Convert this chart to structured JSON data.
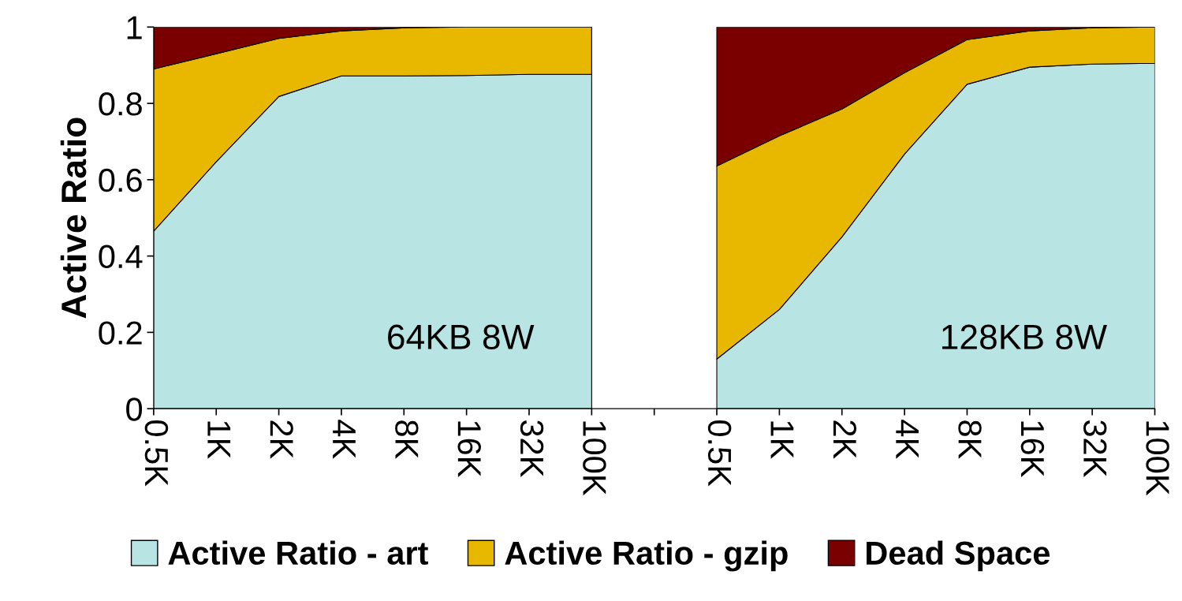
{
  "chart_data": {
    "type": "area",
    "stacked": true,
    "ylabel": "Active Ratio",
    "categories": [
      "0.5K",
      "1K",
      "2K",
      "4K",
      "8K",
      "16K",
      "32K",
      "100K",
      null,
      "0.5K",
      "1K",
      "2K",
      "4K",
      "8K",
      "16K",
      "32K",
      "100K"
    ],
    "series": [
      {
        "name": "Active Ratio - art",
        "color": "#b8e4e4",
        "values": [
          0.465,
          0.647,
          0.818,
          0.872,
          0.872,
          0.873,
          0.876,
          0.876,
          null,
          0.13,
          0.26,
          0.45,
          0.667,
          0.85,
          0.895,
          0.903,
          0.905
        ]
      },
      {
        "name": "Active Ratio - gzip",
        "color": "#e8b800",
        "values": [
          0.425,
          0.283,
          0.152,
          0.118,
          0.126,
          0.127,
          0.124,
          0.124,
          null,
          0.506,
          0.455,
          0.335,
          0.213,
          0.117,
          0.095,
          0.095,
          0.095
        ]
      },
      {
        "name": "Dead Space",
        "color": "#7a0000",
        "values": [
          0.11,
          0.07,
          0.03,
          0.01,
          0.002,
          0,
          0,
          0,
          null,
          0.364,
          0.285,
          0.215,
          0.12,
          0.033,
          0.01,
          0.002,
          0
        ]
      }
    ],
    "ylim": [
      0,
      1
    ],
    "yticks": [
      0,
      0.2,
      0.4,
      0.6,
      0.8,
      1
    ],
    "annotations": [
      "64KB 8W",
      "128KB 8W"
    ],
    "legend": "bottom",
    "grid": false
  }
}
